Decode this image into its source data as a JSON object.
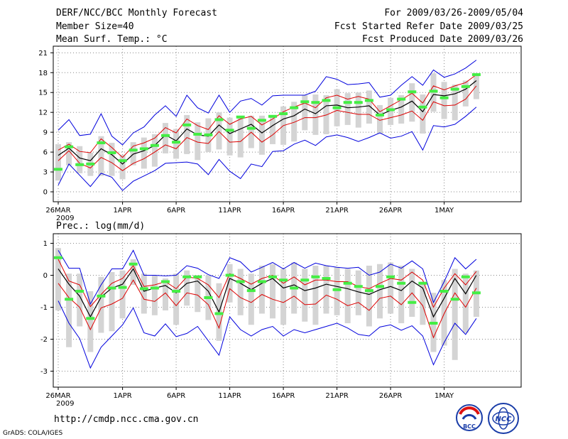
{
  "header": {
    "title": "DERF/NCC/BCC Monthly Forecast",
    "member_size": "Member Size=40",
    "variable": "Mean Surf. Temp.: °C",
    "period": "For 2009/03/26-2009/05/04",
    "start_date": "Fcst Started Refer Date 2009/03/25",
    "produced_date": "Fcst Produced Date 2009/03/26"
  },
  "precip_label": "Prec.: log(mm/d)",
  "footer": {
    "url": "http://cmdp.ncc.cma.gov.cn",
    "grads": "GrADS: COLA/IGES",
    "logo_bcc_text": "BCC",
    "logo_ncc_text": "NCC"
  },
  "colors": {
    "envelope": "#0000dd",
    "inner_band": "#dd0000",
    "ensemble_mean": "#000000",
    "member_bar": "#d4d4d4",
    "observed": "#44ee44"
  },
  "chart_data": [
    {
      "type": "line",
      "name": "temperature",
      "ylabel": "Mean Surf. Temp. (°C)",
      "ylim": [
        -1.5,
        22
      ],
      "yticks": [
        0,
        3,
        6,
        9,
        12,
        15,
        18,
        21
      ],
      "xticks": [
        {
          "day": 0,
          "label": "26MAR"
        },
        {
          "day": 6,
          "label": "1APR"
        },
        {
          "day": 11,
          "label": "6APR"
        },
        {
          "day": 16,
          "label": "11APR"
        },
        {
          "day": 21,
          "label": "16APR"
        },
        {
          "day": 26,
          "label": "21APR"
        },
        {
          "day": 31,
          "label": "26APR"
        },
        {
          "day": 36,
          "label": "1MAY"
        }
      ],
      "year_label": "2009",
      "x": [
        0,
        1,
        2,
        3,
        4,
        5,
        6,
        7,
        8,
        9,
        10,
        11,
        12,
        13,
        14,
        15,
        16,
        17,
        18,
        19,
        20,
        21,
        22,
        23,
        24,
        25,
        26,
        27,
        28,
        29,
        30,
        31,
        32,
        33,
        34,
        35,
        36,
        37,
        38,
        39
      ],
      "series": [
        {
          "name": "max",
          "values": [
            1.0,
            4.2,
            2.5,
            0.8,
            2.8,
            2.2,
            0.2,
            1.6,
            2.4,
            3.2,
            4.3,
            4.4,
            4.5,
            4.2,
            2.6,
            4.9,
            3.1,
            2.0,
            4.2,
            3.8,
            6.1,
            6.2,
            7.2,
            7.8,
            7.0,
            8.3,
            8.6,
            8.2,
            7.6,
            8.2,
            8.9,
            8.1,
            8.4,
            9.1,
            6.3,
            10.0,
            9.8,
            10.2,
            11.4,
            12.8
          ]
        },
        {
          "name": "upper_red",
          "values": [
            6.3,
            7.2,
            6.1,
            5.9,
            8.0,
            6.7,
            5.2,
            6.9,
            7.4,
            8.1,
            9.7,
            8.9,
            11.0,
            10.0,
            9.4,
            11.5,
            10.2,
            11.0,
            11.4,
            10.1,
            11.0,
            12.1,
            12.8,
            13.4,
            12.7,
            14.2,
            14.6,
            14.0,
            14.4,
            14.0,
            12.1,
            13.0,
            13.9,
            14.9,
            13.4,
            16.0,
            15.4,
            16.0,
            16.5,
            17.7
          ]
        },
        {
          "name": "mean",
          "values": [
            5.5,
            6.6,
            5.1,
            4.7,
            6.5,
            5.6,
            4.2,
            5.7,
            6.2,
            7.0,
            8.6,
            7.7,
            9.5,
            8.6,
            8.4,
            10.1,
            8.8,
            9.5,
            10.2,
            8.9,
            10.0,
            11.0,
            11.5,
            12.5,
            11.8,
            13.0,
            13.1,
            12.7,
            12.8,
            13.0,
            11.6,
            12.3,
            12.8,
            13.7,
            12.1,
            14.7,
            14.5,
            14.8,
            15.5,
            16.8
          ]
        },
        {
          "name": "lower_red",
          "values": [
            4.7,
            6.2,
            4.3,
            3.6,
            5.2,
            4.4,
            3.2,
            4.3,
            5.0,
            6.0,
            7.1,
            6.5,
            8.2,
            7.5,
            7.3,
            9.1,
            7.5,
            7.6,
            9.0,
            7.5,
            8.6,
            10.0,
            10.5,
            11.2,
            11.2,
            11.6,
            12.3,
            12.0,
            11.7,
            11.7,
            10.8,
            11.2,
            11.6,
            12.2,
            10.8,
            13.6,
            13.0,
            13.1,
            14.0,
            16.0
          ]
        },
        {
          "name": "min",
          "values": [
            9.3,
            10.9,
            8.5,
            8.7,
            11.8,
            8.4,
            7.1,
            8.9,
            9.8,
            11.6,
            13.0,
            11.4,
            14.6,
            12.7,
            11.9,
            14.6,
            12.0,
            13.7,
            14.1,
            13.1,
            14.5,
            14.6,
            14.6,
            14.6,
            15.2,
            17.4,
            17.0,
            16.2,
            16.3,
            16.5,
            14.3,
            14.6,
            16.1,
            17.4,
            16.1,
            18.4,
            17.3,
            17.8,
            18.7,
            19.9
          ]
        },
        {
          "name": "members_top",
          "values": [
            7.2,
            7.5,
            6.9,
            5.9,
            8.4,
            7.4,
            5.6,
            7.5,
            8.2,
            8.7,
            10.4,
            9.5,
            11.6,
            10.5,
            11.1,
            12.0,
            11.2,
            11.4,
            11.5,
            11.5,
            11.3,
            12.9,
            13.6,
            14.6,
            14.7,
            14.6,
            15.5,
            14.9,
            15.0,
            15.3,
            13.1,
            14.2,
            14.6,
            16.4,
            14.7,
            17.9,
            16.6,
            16.2,
            16.8,
            17.9
          ]
        },
        {
          "name": "members_bottom",
          "values": [
            1.7,
            4.0,
            2.8,
            2.4,
            2.4,
            2.4,
            1.9,
            4.0,
            3.5,
            3.8,
            5.8,
            5.0,
            5.7,
            4.8,
            6.0,
            6.4,
            5.5,
            5.2,
            6.6,
            5.6,
            7.2,
            7.1,
            7.6,
            9.3,
            8.6,
            8.7,
            9.9,
            10.1,
            9.7,
            10.3,
            8.8,
            10.1,
            10.3,
            10.6,
            8.8,
            12.1,
            11.0,
            10.8,
            12.9,
            14.0
          ]
        },
        {
          "name": "observed",
          "values": [
            3.4,
            6.8,
            4.1,
            4.2,
            7.4,
            5.9,
            4.7,
            6.3,
            6.5,
            7.0,
            8.5,
            7.5,
            10.1,
            8.7,
            8.6,
            10.9,
            9.3,
            11.3,
            9.6,
            10.8,
            11.4,
            11.8,
            12.7,
            13.6,
            13.5,
            13.8,
            12.7,
            13.5,
            13.5,
            13.8,
            11.6,
            12.4,
            14.0,
            15.1,
            12.8,
            15.2,
            14.2,
            15.5,
            15.9,
            17.7
          ]
        }
      ]
    },
    {
      "type": "line",
      "name": "precipitation",
      "ylabel": "Prec.: log(mm/d)",
      "ylim": [
        -3.5,
        1.3
      ],
      "yticks": [
        -3,
        -2,
        -1,
        0,
        1
      ],
      "xticks": [
        {
          "day": 0,
          "label": "26MAR"
        },
        {
          "day": 6,
          "label": "1APR"
        },
        {
          "day": 11,
          "label": "6APR"
        },
        {
          "day": 16,
          "label": "11APR"
        },
        {
          "day": 21,
          "label": "16APR"
        },
        {
          "day": 26,
          "label": "21APR"
        },
        {
          "day": 31,
          "label": "26APR"
        },
        {
          "day": 36,
          "label": "1MAY"
        }
      ],
      "year_label": "2009",
      "x": [
        0,
        1,
        2,
        3,
        4,
        5,
        6,
        7,
        8,
        9,
        10,
        11,
        12,
        13,
        14,
        15,
        16,
        17,
        18,
        19,
        20,
        21,
        22,
        23,
        24,
        25,
        26,
        27,
        28,
        29,
        30,
        31,
        32,
        33,
        34,
        35,
        36,
        37,
        38,
        39
      ],
      "series": [
        {
          "name": "max",
          "values": [
            0.78,
            0.22,
            0.22,
            -0.9,
            -0.3,
            0.2,
            0.2,
            0.78,
            0.0,
            0.0,
            -0.02,
            0.0,
            0.3,
            0.22,
            0.02,
            -0.1,
            0.55,
            0.42,
            0.1,
            0.25,
            0.4,
            0.2,
            0.4,
            0.22,
            0.38,
            0.3,
            0.25,
            0.22,
            0.25,
            0.0,
            0.1,
            0.35,
            0.22,
            0.45,
            0.2,
            -0.85,
            -0.2,
            0.55,
            0.2,
            0.5
          ]
        },
        {
          "name": "upper_red",
          "values": [
            0.5,
            -0.18,
            -0.3,
            -0.98,
            -0.6,
            -0.25,
            -0.1,
            0.3,
            -0.35,
            -0.3,
            -0.2,
            -0.42,
            -0.05,
            -0.1,
            -0.3,
            -0.7,
            0.05,
            -0.1,
            -0.28,
            -0.1,
            0.0,
            -0.25,
            -0.05,
            -0.3,
            -0.15,
            -0.15,
            -0.2,
            -0.2,
            -0.35,
            -0.42,
            -0.25,
            -0.1,
            -0.15,
            0.1,
            -0.15,
            -1.0,
            -0.4,
            0.05,
            -0.3,
            0.12
          ]
        },
        {
          "name": "mean",
          "values": [
            0.2,
            -0.28,
            -0.65,
            -1.3,
            -0.68,
            -0.4,
            -0.28,
            0.2,
            -0.5,
            -0.4,
            -0.32,
            -0.55,
            -0.25,
            -0.18,
            -0.5,
            -1.15,
            -0.1,
            -0.25,
            -0.45,
            -0.25,
            -0.1,
            -0.4,
            -0.3,
            -0.48,
            -0.4,
            -0.28,
            -0.35,
            -0.42,
            -0.52,
            -0.6,
            -0.45,
            -0.35,
            -0.48,
            -0.18,
            -0.4,
            -1.3,
            -0.72,
            -0.1,
            -0.58,
            0.0
          ]
        },
        {
          "name": "lower_red",
          "values": [
            -0.25,
            -0.7,
            -1.0,
            -1.7,
            -1.02,
            -0.9,
            -0.72,
            -0.15,
            -0.75,
            -0.82,
            -0.55,
            -0.95,
            -0.55,
            -0.62,
            -0.92,
            -1.65,
            -0.42,
            -0.7,
            -0.85,
            -0.6,
            -0.75,
            -0.85,
            -0.65,
            -0.92,
            -0.9,
            -0.62,
            -0.75,
            -0.95,
            -0.85,
            -1.1,
            -0.72,
            -0.65,
            -0.92,
            -0.55,
            -0.95,
            -1.95,
            -1.2,
            -0.55,
            -1.0,
            -0.4
          ]
        },
        {
          "name": "min",
          "values": [
            -0.8,
            -1.5,
            -1.98,
            -2.9,
            -2.25,
            -1.9,
            -1.55,
            -1.02,
            -1.8,
            -1.9,
            -1.52,
            -1.92,
            -1.82,
            -1.6,
            -2.05,
            -2.5,
            -1.3,
            -1.7,
            -1.9,
            -1.7,
            -1.6,
            -1.9,
            -1.7,
            -1.8,
            -1.7,
            -1.6,
            -1.5,
            -1.65,
            -1.85,
            -1.9,
            -1.62,
            -1.55,
            -1.72,
            -1.58,
            -1.9,
            -2.8,
            -2.1,
            -1.5,
            -1.85,
            -1.35
          ]
        },
        {
          "name": "members_top",
          "values": [
            0.85,
            0.05,
            0.05,
            -0.5,
            -0.05,
            0.1,
            0.15,
            0.5,
            0.05,
            0.0,
            -0.1,
            0.05,
            0.15,
            0.0,
            0.0,
            -0.25,
            0.35,
            0.2,
            0.05,
            0.3,
            0.35,
            0.2,
            0.4,
            0.2,
            0.3,
            0.3,
            0.25,
            0.2,
            0.15,
            0.3,
            0.35,
            0.4,
            0.3,
            0.2,
            -0.2,
            -0.55,
            -0.15,
            0.2,
            0.05,
            0.15
          ]
        },
        {
          "name": "members_bottom",
          "values": [
            -1.1,
            -2.25,
            -1.6,
            -2.4,
            -1.8,
            -1.75,
            -1.35,
            -0.3,
            -1.2,
            -1.25,
            -1.1,
            -1.55,
            -0.95,
            -1.15,
            -1.4,
            -2.05,
            -0.85,
            -1.25,
            -1.55,
            -1.2,
            -1.35,
            -1.55,
            -1.2,
            -1.45,
            -1.55,
            -1.2,
            -1.25,
            -1.5,
            -1.25,
            -1.6,
            -1.35,
            -1.2,
            -1.5,
            -1.3,
            -1.55,
            -2.4,
            -2.2,
            -2.65,
            -1.8,
            -1.3
          ]
        },
        {
          "name": "observed",
          "values": [
            0.55,
            -0.75,
            -0.5,
            -1.35,
            -0.65,
            -0.4,
            -0.38,
            0.35,
            -0.42,
            -0.4,
            -0.2,
            -0.5,
            -0.05,
            -0.05,
            -0.7,
            -1.2,
            0.0,
            -0.2,
            -0.48,
            -0.2,
            -0.05,
            -0.15,
            -0.4,
            -0.15,
            -0.05,
            -0.1,
            -0.45,
            -0.25,
            -0.35,
            -0.48,
            -0.35,
            -0.05,
            -0.25,
            -0.85,
            -0.25,
            -1.5,
            -0.5,
            -0.75,
            -0.05,
            -0.55
          ]
        }
      ]
    }
  ]
}
